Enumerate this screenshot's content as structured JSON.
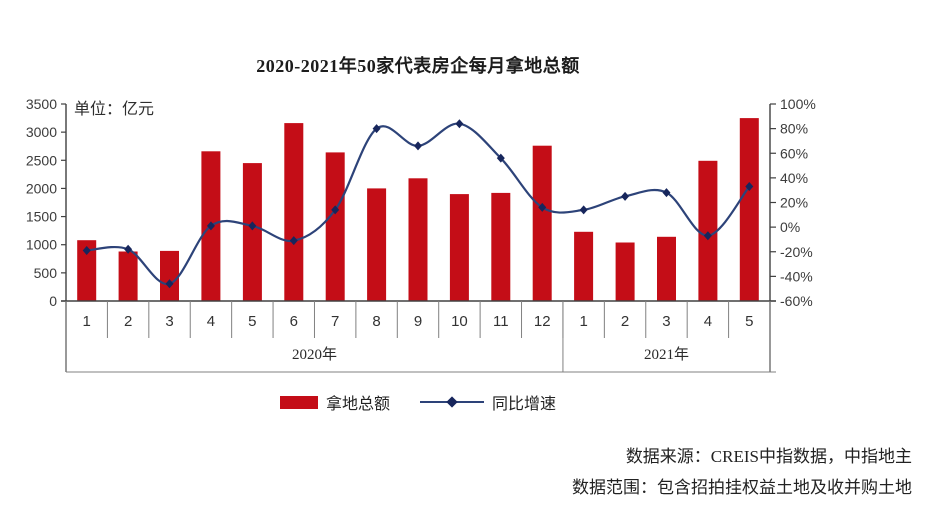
{
  "title": "2020-2021年50家代表房企每月拿地总额",
  "unit_label": "单位：亿元",
  "legend": {
    "bar_label": "拿地总额",
    "line_label": "同比增速"
  },
  "source": {
    "line1": "数据来源：CREIS中指数据，中指地主",
    "line2": "数据范围：包含招拍挂权益土地及收并购土地"
  },
  "colors": {
    "bar": "#c40d17",
    "line": "#2d4379",
    "marker": "#17265c",
    "axis_line": "#404040",
    "grid_line": "#808080",
    "tick_text": "#3c3c3c"
  },
  "chart_data": {
    "type": "bar+line",
    "title": "2020-2021年50家代表房企每月拿地总额",
    "ylabel_left": "单位：亿元",
    "ylabel_right": "%",
    "categories": [
      "1",
      "2",
      "3",
      "4",
      "5",
      "6",
      "7",
      "8",
      "9",
      "10",
      "11",
      "12",
      "1",
      "2",
      "3",
      "4",
      "5"
    ],
    "year_groups": [
      {
        "label": "2020年",
        "span": 12
      },
      {
        "label": "2021年",
        "span": 5
      }
    ],
    "series": [
      {
        "name": "拿地总额",
        "type": "bar",
        "axis": "left",
        "unit": "亿元",
        "values": [
          1080,
          880,
          890,
          2660,
          2450,
          3160,
          2640,
          2000,
          2180,
          1900,
          1920,
          2760,
          1230,
          1040,
          1140,
          2490,
          3250
        ]
      },
      {
        "name": "同比增速",
        "type": "line",
        "axis": "right",
        "unit": "%",
        "values": [
          -19,
          -18,
          -46,
          1,
          1,
          -11,
          14,
          80,
          66,
          84,
          56,
          16,
          14,
          25,
          28,
          -7,
          33
        ]
      }
    ],
    "left_axis": {
      "min": 0,
      "max": 3500,
      "step": 500,
      "tick_labels": [
        "0",
        "500",
        "1000",
        "1500",
        "2000",
        "2500",
        "3000",
        "3500"
      ]
    },
    "right_axis": {
      "min": -60,
      "max": 100,
      "step": 20,
      "tick_labels": [
        "-60%",
        "-40%",
        "-20%",
        "0%",
        "20%",
        "40%",
        "60%",
        "80%",
        "100%"
      ]
    },
    "grid": false,
    "legend_position": "bottom"
  }
}
